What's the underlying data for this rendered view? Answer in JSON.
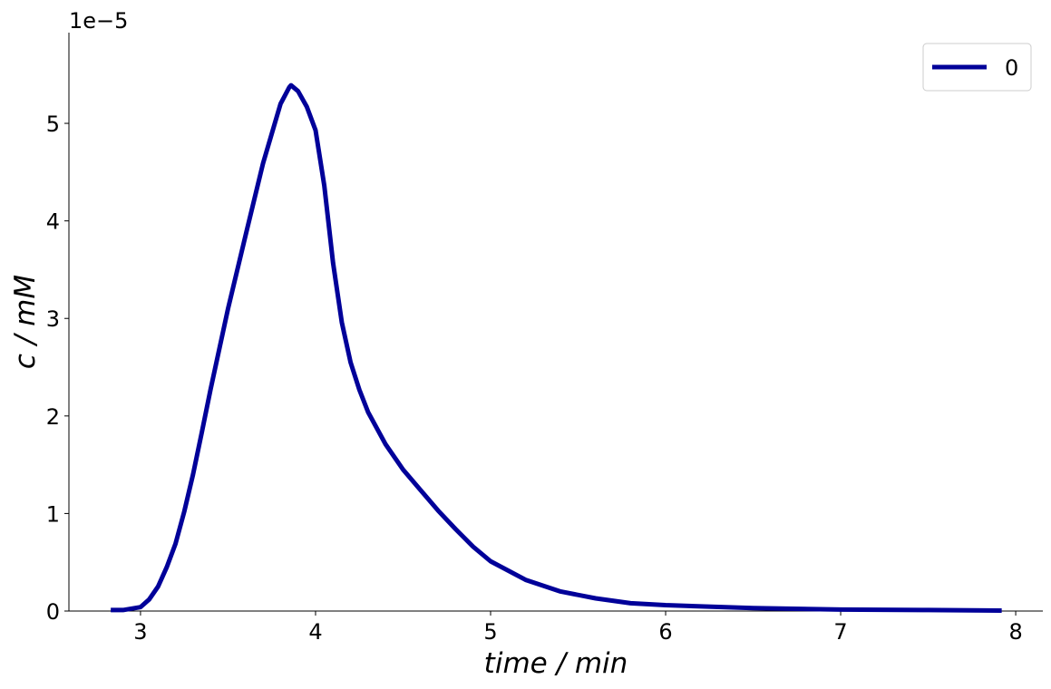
{
  "chart_data": {
    "type": "line",
    "x_label": "time / min",
    "y_label": "c / mM",
    "y_offset_label": "1e−5",
    "xlim": [
      2.591,
      8.155
    ],
    "ylim": [
      0,
      5.93
    ],
    "xticks": [
      3,
      4,
      5,
      6,
      7,
      8
    ],
    "yticks": [
      0,
      1,
      2,
      3,
      4,
      5
    ],
    "legend": "upper right",
    "series": [
      {
        "name": "0",
        "color": "#000099",
        "x": [
          2.83,
          2.9,
          3.0,
          3.05,
          3.1,
          3.15,
          3.2,
          3.25,
          3.3,
          3.35,
          3.4,
          3.5,
          3.6,
          3.7,
          3.8,
          3.85,
          3.86,
          3.9,
          3.95,
          4.0,
          4.05,
          4.1,
          4.15,
          4.2,
          4.25,
          4.3,
          4.4,
          4.5,
          4.6,
          4.7,
          4.8,
          4.9,
          5.0,
          5.2,
          5.4,
          5.6,
          5.8,
          6.0,
          6.5,
          7.0,
          7.5,
          7.92
        ],
        "values": [
          0.01,
          0.01,
          0.04,
          0.12,
          0.25,
          0.45,
          0.69,
          1.02,
          1.4,
          1.83,
          2.27,
          3.1,
          3.85,
          4.59,
          5.2,
          5.37,
          5.39,
          5.33,
          5.17,
          4.93,
          4.36,
          3.57,
          2.96,
          2.55,
          2.27,
          2.04,
          1.71,
          1.45,
          1.24,
          1.03,
          0.84,
          0.66,
          0.51,
          0.32,
          0.2,
          0.13,
          0.08,
          0.06,
          0.03,
          0.015,
          0.01,
          0.005
        ]
      }
    ]
  }
}
